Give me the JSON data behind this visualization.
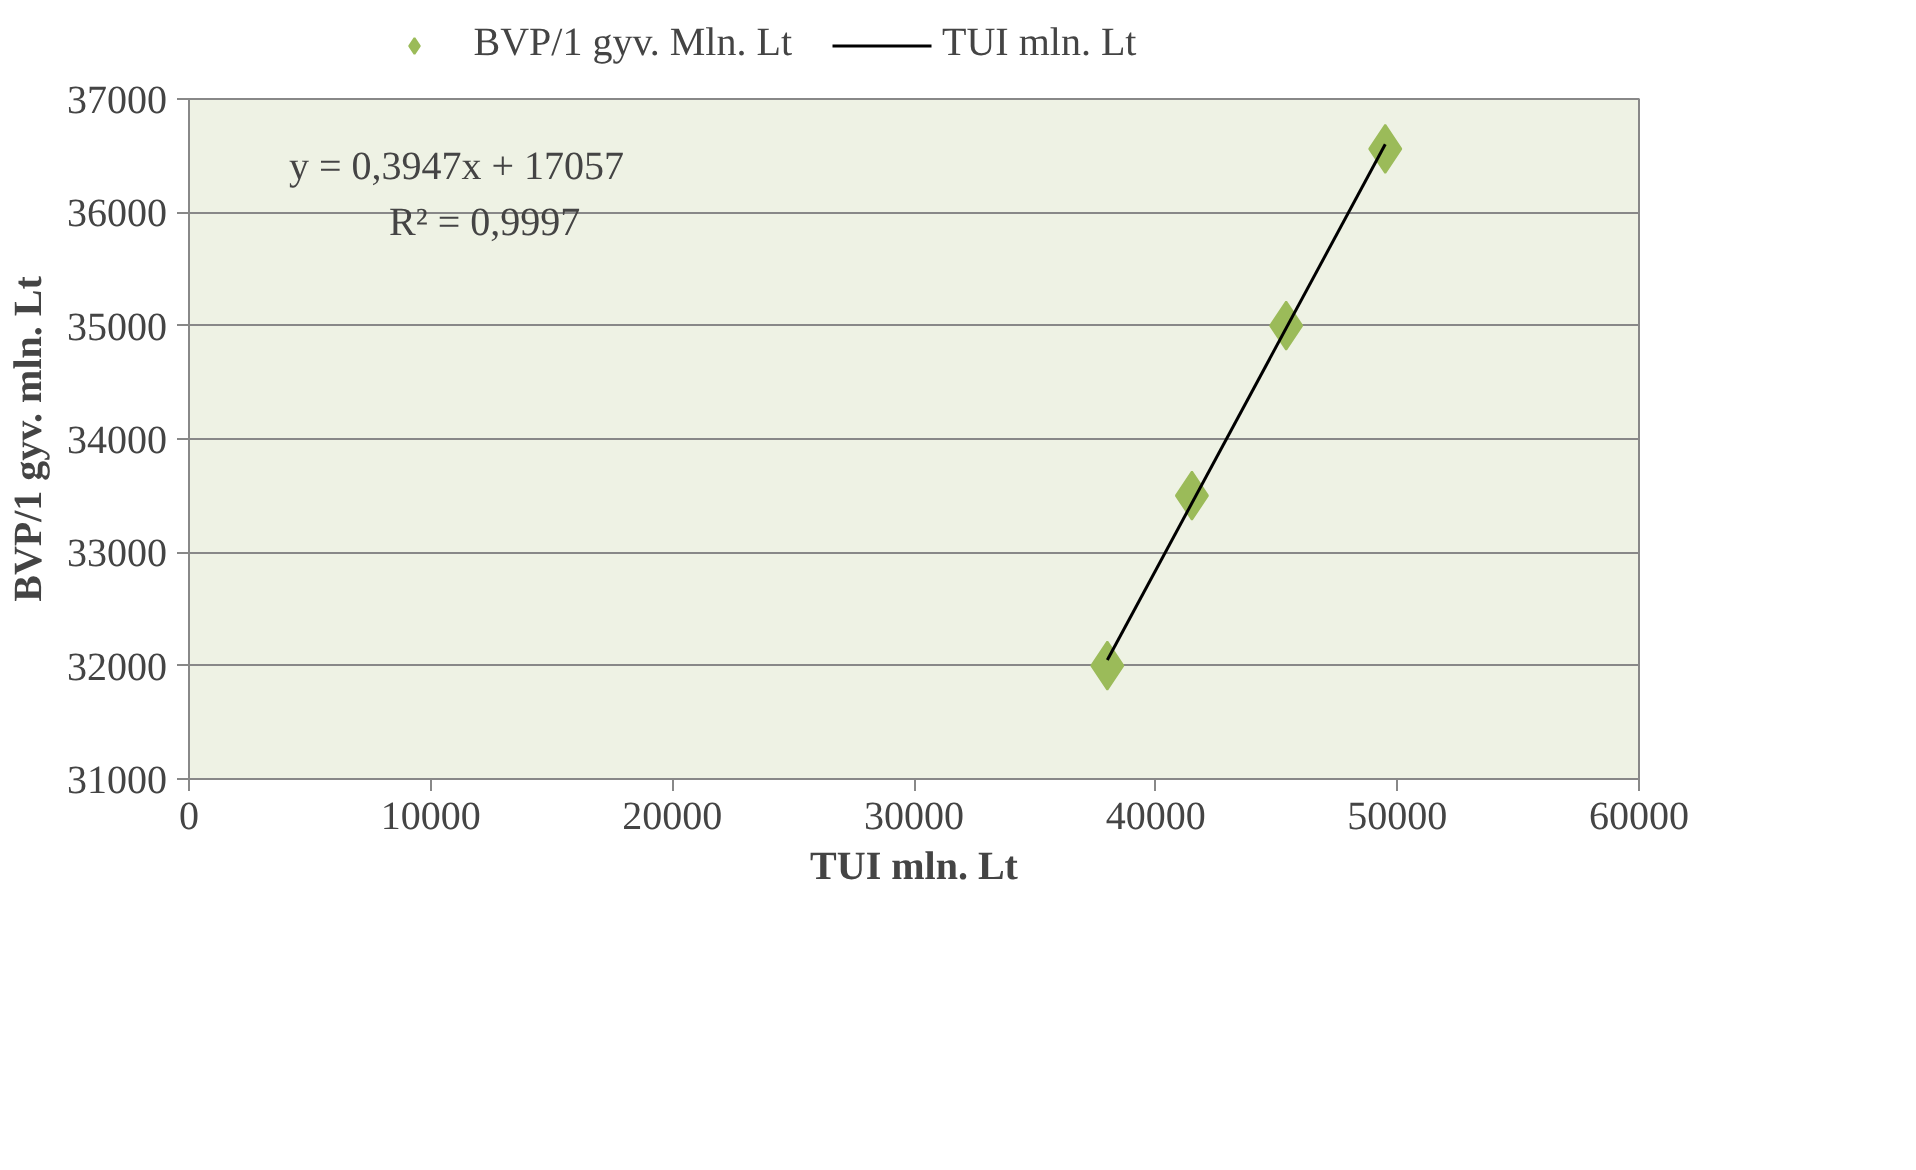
{
  "chart_data": {
    "type": "scatter",
    "xlabel": "TUI mln. Lt",
    "ylabel": "BVP/1 gyv. mln. Lt",
    "series": [
      {
        "name": "BVP/1 gyv. Mln. Lt",
        "color": "#9bbb59",
        "marker": "diamond",
        "x": [
          38000,
          41500,
          45400,
          49500
        ],
        "values": [
          32000,
          33500,
          35000,
          36560
        ]
      },
      {
        "name": "TUI mln. Lt",
        "type": "line",
        "color": "#000000",
        "line_style": "solid",
        "x": [
          38000,
          49500
        ],
        "values": [
          32050,
          36600
        ]
      }
    ],
    "xlim": [
      0,
      60000
    ],
    "xticks": [
      0,
      10000,
      20000,
      30000,
      40000,
      50000,
      60000
    ],
    "ylim": [
      31000,
      37000
    ],
    "yticks": [
      31000,
      32000,
      33000,
      34000,
      35000,
      36000,
      37000
    ],
    "grid": "y",
    "legend": "top",
    "annotations": [
      "y = 0,3947x + 17057",
      "R² = 0,9997"
    ]
  }
}
